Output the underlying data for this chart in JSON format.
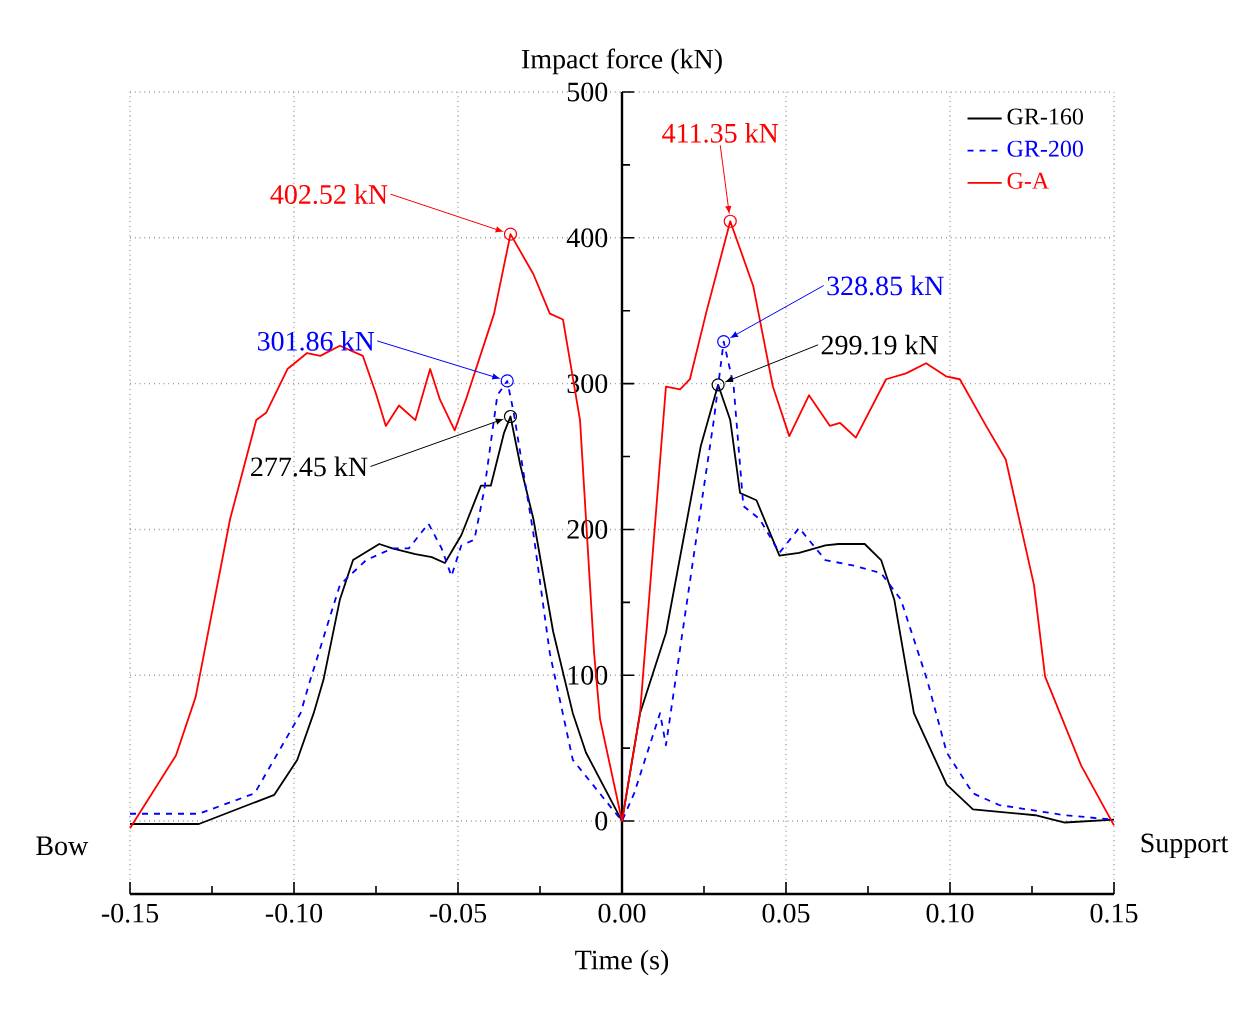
{
  "chart_data": {
    "type": "line",
    "xlabel": "Time (s)",
    "ylabel": "Impact force (kN)",
    "xlim": [
      -0.15,
      0.15
    ],
    "ylim": [
      -50,
      500
    ],
    "xticks": [
      -0.15,
      {
        "value": -0.125,
        "label": null
      },
      {
        "value": -0.1,
        "label": "-0.10"
      },
      {
        "value": -0.075,
        "label": null
      },
      -0.05,
      {
        "value": -0.025,
        "label": null
      },
      {
        "value": 0,
        "label": "0.00"
      },
      {
        "value": 0.025,
        "label": null
      },
      0.05,
      {
        "value": 0.075,
        "label": null
      },
      {
        "value": 0.1,
        "label": "0.10"
      },
      {
        "value": 0.125,
        "label": null
      },
      0.15
    ],
    "yticks": [
      0,
      {
        "value": 50,
        "label": null
      },
      100,
      {
        "value": 150,
        "label": null
      },
      200,
      {
        "value": 250,
        "label": null
      },
      300,
      {
        "value": 350,
        "label": null
      },
      400,
      {
        "value": 450,
        "label": null
      },
      500
    ],
    "grid": true,
    "legend": "top right",
    "series": [
      {
        "name": "GR-160",
        "color": "#000000",
        "line_style": "solid",
        "x": [
          -0.15,
          -0.129,
          -0.106,
          -0.099,
          -0.094,
          -0.091,
          -0.086,
          -0.082,
          -0.074,
          -0.07,
          -0.063,
          -0.058,
          -0.054,
          -0.049,
          -0.043,
          -0.04,
          -0.036,
          -0.034,
          -0.031,
          -0.027,
          -0.021,
          -0.015,
          -0.011,
          0,
          0.0055,
          0.0134,
          0.024,
          0.0293,
          0.033,
          0.036,
          0.041,
          0.048,
          0.054,
          0.062,
          0.066,
          0.074,
          0.079,
          0.083,
          0.089,
          0.099,
          0.107,
          0.126,
          0.135,
          0.15
        ],
        "values": [
          -2,
          -2,
          18,
          42,
          74,
          97,
          152,
          179,
          190,
          187,
          183,
          181,
          177,
          196,
          230,
          230,
          266,
          277.45,
          244,
          207,
          130,
          74,
          47,
          0,
          74,
          129,
          257,
          299.19,
          275,
          225,
          220,
          182,
          184,
          189,
          190,
          190,
          179,
          152,
          74,
          25,
          8,
          4,
          -1,
          1
        ]
      },
      {
        "name": "GR-200",
        "color": "#0000ff",
        "line_style": "dashed",
        "x": [
          -0.15,
          -0.129,
          -0.112,
          -0.1,
          -0.098,
          -0.095,
          -0.086,
          -0.078,
          -0.07,
          -0.065,
          -0.059,
          -0.055,
          -0.052,
          -0.049,
          -0.045,
          -0.042,
          -0.038,
          -0.035,
          -0.033,
          -0.027,
          -0.022,
          -0.015,
          0,
          0.0037,
          0.0116,
          0.0134,
          0.022,
          0.028,
          0.031,
          0.034,
          0.037,
          0.042,
          0.048,
          0.054,
          0.062,
          0.071,
          0.079,
          0.085,
          0.093,
          0.099,
          0.107,
          0.115,
          0.135,
          0.15
        ],
        "values": [
          5,
          5,
          19,
          66,
          74,
          97,
          162,
          179,
          187,
          187,
          204,
          187,
          168,
          189,
          193,
          227,
          292,
          301.86,
          280,
          197,
          115,
          42,
          0,
          19,
          74,
          52,
          184,
          275,
          328.85,
          299,
          216,
          207,
          184,
          201,
          179,
          175,
          170,
          152,
          97,
          47,
          19,
          11,
          4,
          1
        ]
      },
      {
        "name": "G-A",
        "color": "#ff0000",
        "line_style": "solid",
        "x": [
          -0.15,
          -0.136,
          -0.13,
          -0.1195,
          -0.1115,
          -0.1085,
          -0.102,
          -0.096,
          -0.092,
          -0.086,
          -0.079,
          -0.075,
          -0.072,
          -0.068,
          -0.063,
          -0.0585,
          -0.0555,
          -0.051,
          -0.0476,
          -0.039,
          -0.034,
          -0.027,
          -0.022,
          -0.018,
          -0.0128,
          -0.0085,
          -0.0067,
          0,
          0.0055,
          0.0134,
          0.0177,
          0.0207,
          0.0256,
          0.033,
          0.04,
          0.046,
          0.051,
          0.057,
          0.0634,
          0.0665,
          0.0713,
          0.0805,
          0.0866,
          0.0927,
          0.0988,
          0.103,
          0.111,
          0.117,
          0.1256,
          0.129,
          0.14,
          0.15
        ],
        "values": [
          -5,
          45,
          85,
          207,
          275,
          280,
          310,
          321,
          319,
          326,
          319,
          293,
          271,
          285,
          275,
          310,
          289,
          268,
          289,
          348,
          402.52,
          375,
          348,
          344,
          275,
          115,
          70,
          0,
          74,
          298,
          296,
          303,
          348,
          411.35,
          367,
          298,
          264,
          292,
          271,
          273,
          263,
          303,
          307,
          314,
          305,
          303,
          271,
          248,
          162,
          99,
          38,
          -3
        ]
      }
    ],
    "annotations": [
      {
        "text": "402.52 kN",
        "x": -0.034,
        "y": 402.52
      },
      {
        "text": "301.86 kN",
        "x": -0.035,
        "y": 301.86
      },
      {
        "text": "277.45 kN",
        "x": -0.034,
        "y": 277.45
      },
      {
        "text": "411.35 kN",
        "x": 0.033,
        "y": 411.35
      },
      {
        "text": "328.85 kN",
        "x": 0.031,
        "y": 328.85
      },
      {
        "text": "299.19 kN",
        "x": 0.0293,
        "y": 299.19
      },
      "Bow",
      "Support"
    ]
  }
}
